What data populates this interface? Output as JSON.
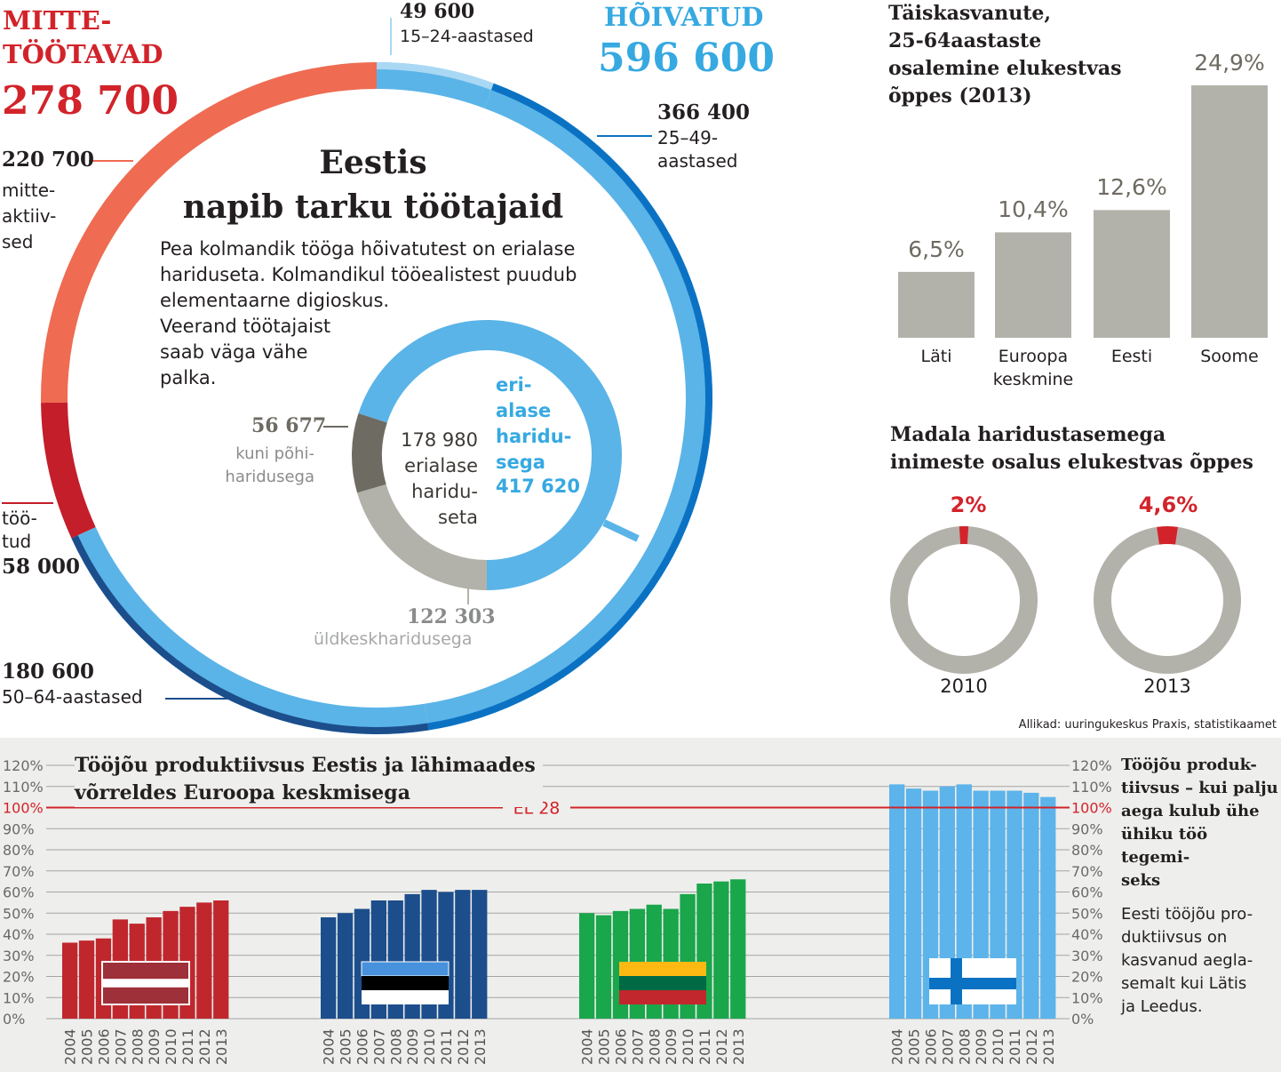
{
  "main": {
    "title": "Eestis\nnapib tarku töötajaid",
    "intro1": "Pea kolmandik tööga hõivatutest on erialase\nhariduseta. Kolmandikul tööealistest puudub\nelementaarne digioskus.",
    "intro2": "Veerand töötajaist\nsaab väga vähe\npalka.",
    "source": "Allikad: uuringukeskus Praxis, statistikaamet"
  },
  "colors": {
    "red_main": "#d2232a",
    "coral": "#ef6b52",
    "dark_red": "#c41e2a",
    "light_blue": "#5ab4e8",
    "pale_blue": "#a9d8f4",
    "dark_blue": "#0b72c3",
    "navy": "#1c4e8c",
    "grey": "#b3b2aa",
    "dark_grey": "#6e6b62",
    "green": "#1aa64b",
    "finland_blue": "#5cb4ea",
    "latvia_red": "#c0272d"
  },
  "chart_data": [
    {
      "type": "pie",
      "name": "Tööealine elanikkond",
      "groups": [
        {
          "label": "MITTE-\nTÖÖTAVAD",
          "value": "278 700"
        },
        {
          "label": "HÕIVATUD",
          "value": "596 600"
        }
      ],
      "slices": [
        {
          "value": "220 700",
          "label": "mitte-\naktiiv-\nsed",
          "color": "coral"
        },
        {
          "value": "58 000",
          "label": "töö-\ntud",
          "color": "dark_red"
        },
        {
          "value": "49 600",
          "label": "15–24-aastased",
          "color": "pale_blue"
        },
        {
          "value": "366 400",
          "label": "25–49-\naastased",
          "color": "dark_blue"
        },
        {
          "value": "180 600",
          "label": "50–64-aastased",
          "color": "navy"
        }
      ]
    },
    {
      "type": "pie",
      "name": "Hõivatute haridus",
      "slices": [
        {
          "value": "417 620",
          "label": "eri-\nalase\nharidu-\nsega",
          "color": "light_blue"
        },
        {
          "value": "56 677",
          "label": "kuni põhi-\nharidusega",
          "color": "dark_grey"
        },
        {
          "value": "122 303",
          "label": "üldkeskharidusega",
          "color": "grey"
        }
      ],
      "center_label": "178 980\nerialase\nharidu-\nseta"
    },
    {
      "type": "bar",
      "title": "Täiskasvanute,\n25-64aastaste\nosalemine elukestvas\nõppes (2013)",
      "categories": [
        "Läti",
        "Euroopa\nkeskmine",
        "Eesti",
        "Soome"
      ],
      "values": [
        6.5,
        10.4,
        12.6,
        24.9
      ],
      "value_labels": [
        "6,5%",
        "10,4%",
        "12,6%",
        "24,9%"
      ]
    },
    {
      "type": "pie",
      "title": "Madala haridustasemega\ninimeste osalus elukestvas õppes",
      "rings": [
        {
          "year": "2010",
          "value": 2.0,
          "value_label": "2%"
        },
        {
          "year": "2013",
          "value": 4.6,
          "value_label": "4,6%"
        }
      ]
    },
    {
      "type": "bar",
      "title": "Tööjõu produktiivsus Eestis ja lähimaades\nvõrreldes Euroopa keskmisega",
      "y_ticks": [
        "120%",
        "110%",
        "100%",
        "90%",
        "80%",
        "70%",
        "60%",
        "50%",
        "40%",
        "30%",
        "20%",
        "10%",
        "0%"
      ],
      "ylim": [
        0,
        120
      ],
      "reference": {
        "value": 100,
        "label": "EL 28"
      },
      "categories": [
        "2004",
        "2005",
        "2006",
        "2007",
        "2008",
        "2009",
        "2010",
        "2011",
        "2012",
        "2013"
      ],
      "series": [
        {
          "country": "latvia",
          "color": "#c0272d",
          "values": [
            36,
            37,
            38,
            47,
            45,
            48,
            51,
            53,
            55,
            56
          ]
        },
        {
          "country": "estonia",
          "color": "#1c4e8c",
          "values": [
            48,
            50,
            52,
            56,
            56,
            59,
            61,
            60,
            61,
            61
          ]
        },
        {
          "country": "lithuania",
          "color": "#1aa64b",
          "values": [
            50,
            49,
            51,
            52,
            54,
            52,
            59,
            64,
            65,
            66
          ]
        },
        {
          "country": "finland",
          "color": "#5cb4ea",
          "values": [
            111,
            109,
            108,
            110,
            111,
            108,
            108,
            108,
            107,
            105
          ]
        }
      ],
      "side_title": "Tööjõu produk-\ntiivsus – kui palju\naega kulub ühe\nühiku töö tegemi-\nseks",
      "side_note": "Eesti tööjõu pro-\nduktiivsus on\nkasvanud aegla-\nsemalt kui Lätis\nja Leedus."
    }
  ]
}
